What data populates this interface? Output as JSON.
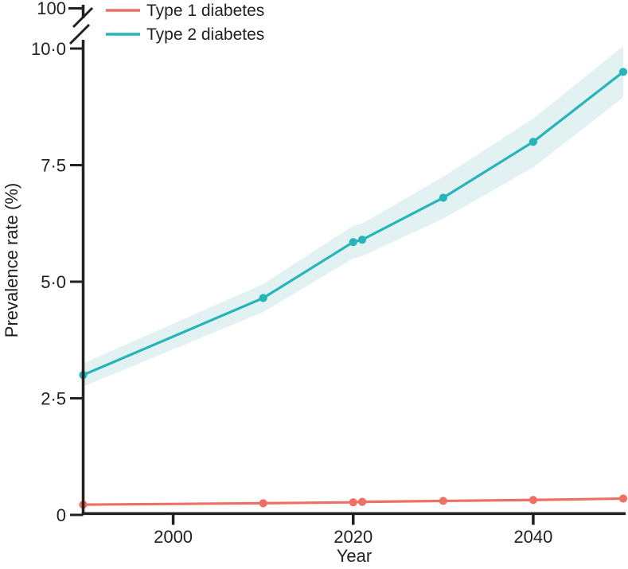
{
  "legend": {
    "items": [
      {
        "label": "Type 1 diabetes",
        "color": "#ee6f64"
      },
      {
        "label": "Type 2 diabetes",
        "color": "#26b4ba"
      }
    ]
  },
  "chart_data": {
    "type": "line",
    "title": "",
    "xlabel": "Year",
    "ylabel": "Prevalence rate (%)",
    "x": [
      1990,
      2010,
      2020,
      2021,
      2030,
      2040,
      2050
    ],
    "series": [
      {
        "name": "Type 1 diabetes",
        "color": "#ee6f64",
        "values": [
          0.22,
          0.25,
          0.27,
          0.28,
          0.3,
          0.32,
          0.35
        ]
      },
      {
        "name": "Type 2 diabetes",
        "color": "#26b4ba",
        "values": [
          3.0,
          4.65,
          5.85,
          5.9,
          6.8,
          8.0,
          9.5
        ],
        "band_lower": [
          2.75,
          4.35,
          5.5,
          5.55,
          6.35,
          7.45,
          8.95
        ],
        "band_upper": [
          3.25,
          4.95,
          6.2,
          6.25,
          7.25,
          8.5,
          10.05
        ],
        "band_color": "#e2f2f3"
      }
    ],
    "x_ticks": [
      "2000",
      "2020",
      "2040"
    ],
    "y_ticks": [
      {
        "value": 0,
        "label": "0"
      },
      {
        "value": 2.5,
        "label": "2·5"
      },
      {
        "value": 5,
        "label": "5·0"
      },
      {
        "value": 7.5,
        "label": "7·5"
      },
      {
        "value": 10,
        "label": "10·0"
      }
    ],
    "y_axis_break": {
      "label_above_break": "100"
    },
    "xlim": [
      1990,
      2050
    ],
    "ylim": [
      0,
      10
    ],
    "grid": false,
    "legend_position": "top-left",
    "decimal_separator": "·",
    "axis_color": "#231f20"
  }
}
